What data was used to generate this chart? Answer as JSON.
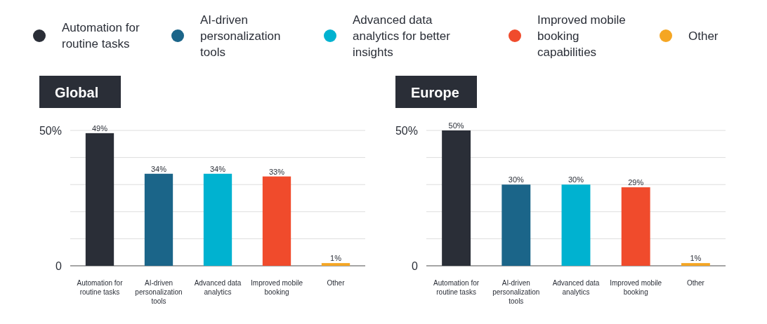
{
  "chart_data": [
    {
      "type": "bar",
      "title": "Global",
      "categories": [
        "Automation for routine tasks",
        "AI-driven personalization tools",
        "Advanced data analytics",
        "Improved mobile booking",
        "Other"
      ],
      "legend": "top",
      "grid": "y",
      "ylim": [
        0,
        50
      ],
      "yticks": [
        0,
        {
          "value": 10,
          "label": null
        },
        {
          "value": 20,
          "label": null
        },
        {
          "value": 30,
          "label": null
        },
        {
          "value": 40,
          "label": null
        },
        {
          "value": 50,
          "label": "50%"
        }
      ],
      "series": [
        {
          "name": "Automation for routine tasks",
          "color": "#2a2e37",
          "values": [
            49,
            null,
            null,
            null,
            null
          ],
          "value_labels": [
            "49%",
            null,
            null,
            null,
            null
          ]
        },
        {
          "name": "AI-driven personalization tools",
          "color": "#1b6589",
          "values": [
            null,
            34,
            null,
            null,
            null
          ],
          "value_labels": [
            null,
            "34%",
            null,
            null,
            null
          ]
        },
        {
          "name": "Advanced data analytics for better insights",
          "color": "#00b2d0",
          "values": [
            null,
            null,
            34,
            null,
            null
          ],
          "value_labels": [
            null,
            null,
            "34%",
            null,
            null
          ]
        },
        {
          "name": "Improved mobile booking capabilities",
          "color": "#f04b2c",
          "values": [
            null,
            null,
            null,
            33,
            null
          ],
          "value_labels": [
            null,
            null,
            null,
            "33%",
            null
          ]
        },
        {
          "name": "Other",
          "color": "#f5a623",
          "values": [
            null,
            null,
            null,
            null,
            1
          ],
          "value_labels": [
            null,
            null,
            null,
            null,
            "1%"
          ]
        }
      ]
    },
    {
      "type": "bar",
      "title": "Europe",
      "categories": [
        "Automation for routine tasks",
        "AI-driven personalization tools",
        "Advanced data analytics",
        "Improved mobile booking",
        "Other"
      ],
      "grid": "y",
      "ylim": [
        0,
        50
      ],
      "yticks": [
        0,
        {
          "value": 10,
          "label": null
        },
        {
          "value": 20,
          "label": null
        },
        {
          "value": 30,
          "label": null
        },
        {
          "value": 40,
          "label": null
        },
        {
          "value": 50,
          "label": "50%"
        }
      ],
      "series": [
        {
          "color": "#2a2e37",
          "values": [
            50,
            null,
            null,
            null,
            null
          ],
          "value_labels": [
            "50%",
            null,
            null,
            null,
            null
          ]
        },
        {
          "color": "#1b6589",
          "values": [
            null,
            30,
            null,
            null,
            null
          ],
          "value_labels": [
            null,
            "30%",
            null,
            null,
            null
          ]
        },
        {
          "color": "#00b2d0",
          "values": [
            null,
            null,
            30,
            null,
            null
          ],
          "value_labels": [
            null,
            null,
            "30%",
            null,
            null
          ]
        },
        {
          "color": "#f04b2c",
          "values": [
            null,
            null,
            null,
            29,
            null
          ],
          "value_labels": [
            null,
            null,
            null,
            "29%",
            null
          ]
        },
        {
          "color": "#f5a623",
          "values": [
            null,
            null,
            null,
            null,
            1
          ],
          "value_labels": [
            null,
            null,
            null,
            null,
            "1%"
          ]
        }
      ]
    }
  ]
}
